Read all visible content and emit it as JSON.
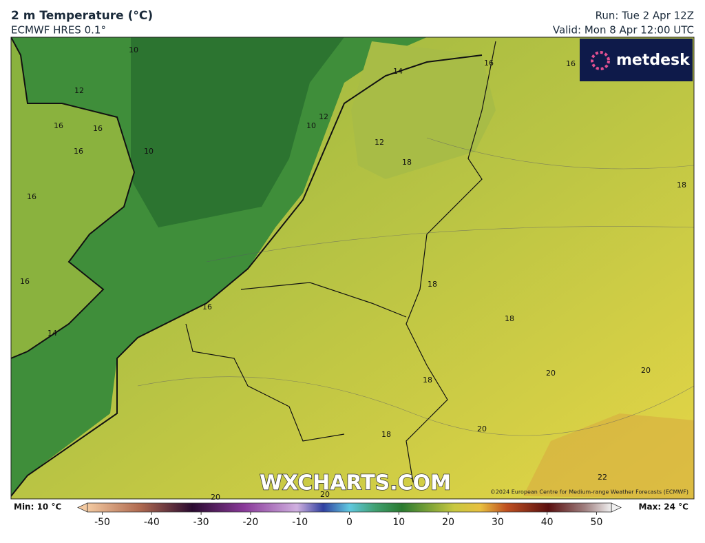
{
  "header": {
    "title": "2 m Temperature (°C)",
    "subtitle": "ECMWF HRES 0.1°",
    "run": "Run: Tue 2 Apr 12Z",
    "valid": "Valid: Mon 8 Apr 12:00 UTC"
  },
  "logo": "metdesk",
  "watermark": "WXCHARTS.COM",
  "copyright": "©2024 European Centre for Medium-range Weather Forecasts (ECMWF)",
  "contour_labels": [
    10,
    12,
    16,
    16,
    16,
    10,
    16,
    16,
    14,
    16,
    10,
    12,
    14,
    12,
    18,
    16,
    16,
    18,
    18,
    18,
    20,
    20,
    18,
    20,
    18,
    22,
    20,
    20
  ],
  "colorbar": {
    "min_label": "Min: 10 °C",
    "max_label": "Max: 24 °C",
    "lim": [
      -53,
      53
    ],
    "ticks": [
      -50,
      -40,
      -30,
      -20,
      -10,
      0,
      10,
      20,
      30,
      40,
      50
    ]
  }
}
